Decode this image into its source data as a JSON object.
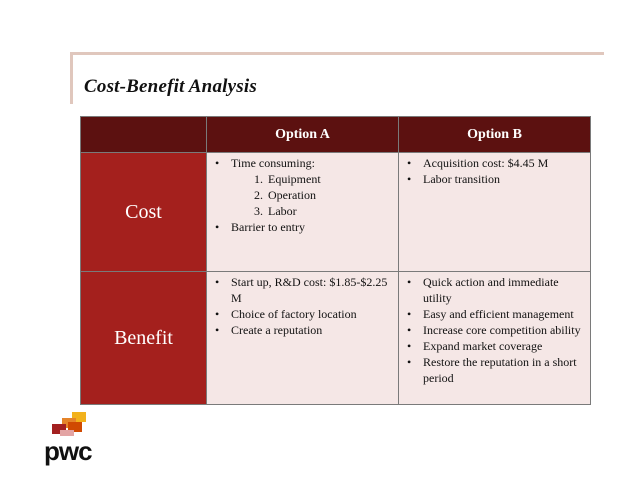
{
  "slide": {
    "title": "Cost-Benefit Analysis"
  },
  "table": {
    "columns": [
      "Option A",
      "Option B"
    ],
    "rows": [
      {
        "label": "Cost",
        "option_a": {
          "items": [
            "Time consuming:",
            "Barrier to entry"
          ],
          "sub_items": [
            "Equipment",
            "Operation",
            "Labor"
          ]
        },
        "option_b": {
          "items": [
            "Acquisition cost: $4.45 M",
            "Labor transition"
          ]
        }
      },
      {
        "label": "Benefit",
        "option_a": {
          "items": [
            "Start up, R&D cost: $1.85-$2.25 M",
            "Choice of factory location",
            "Create a reputation"
          ]
        },
        "option_b": {
          "items": [
            "Quick action and immediate utility",
            "Easy and efficient  management",
            "Increase core competition ability",
            "Expand market coverage",
            "Restore the reputation in a short period"
          ]
        }
      }
    ]
  },
  "logo": {
    "text": "pwc",
    "colors": [
      "#f2b21c",
      "#e5842a",
      "#d04a02",
      "#a32020",
      "#e3a4a4"
    ]
  }
}
